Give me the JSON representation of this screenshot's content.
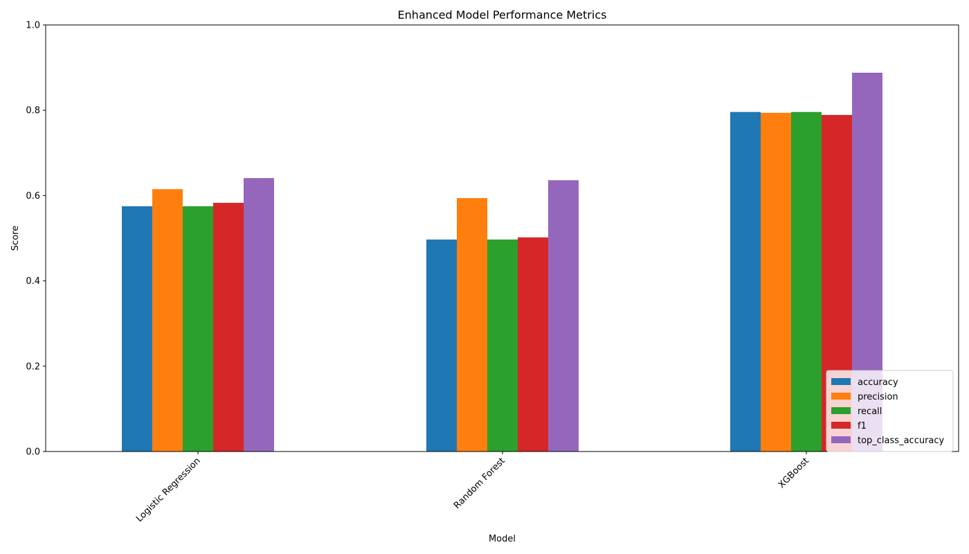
{
  "chart_data": {
    "type": "bar",
    "title": "Enhanced Model Performance Metrics",
    "xlabel": "Model",
    "ylabel": "Score",
    "ylim": [
      0,
      1
    ],
    "yticks": [
      "0.0",
      "0.2",
      "0.4",
      "0.6",
      "0.8",
      "1.0"
    ],
    "categories": [
      "Logistic Regression",
      "Random Forest",
      "XGBoost"
    ],
    "series": [
      {
        "name": "accuracy",
        "color": "#1f77b4",
        "values": [
          0.575,
          0.497,
          0.796
        ]
      },
      {
        "name": "precision",
        "color": "#ff7f0e",
        "values": [
          0.615,
          0.594,
          0.794
        ]
      },
      {
        "name": "recall",
        "color": "#2ca02c",
        "values": [
          0.575,
          0.497,
          0.796
        ]
      },
      {
        "name": "f1",
        "color": "#d62728",
        "values": [
          0.583,
          0.502,
          0.789
        ]
      },
      {
        "name": "top_class_accuracy",
        "color": "#9467bd",
        "values": [
          0.641,
          0.636,
          0.888
        ]
      }
    ],
    "legend_position": "lower-right",
    "grid": false
  }
}
